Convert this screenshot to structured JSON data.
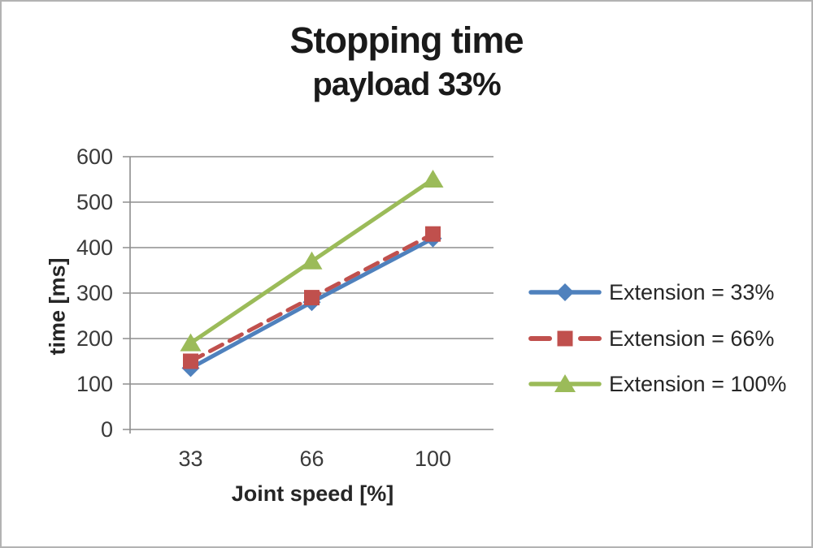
{
  "frame": {
    "background": "#ffffff",
    "border_color": "#b3b3b3"
  },
  "chart_data": {
    "type": "line",
    "title": "Stopping time",
    "subtitle": "payload 33%",
    "xlabel": "Joint speed [%]",
    "ylabel": "time [ms]",
    "categories": [
      "33",
      "66",
      "100"
    ],
    "y_ticks": [
      "0",
      "100",
      "200",
      "300",
      "400",
      "500",
      "600"
    ],
    "ylim": [
      0,
      600
    ],
    "grid": "horizontal",
    "legend_position": "right",
    "axis_color": "#8e8e8e",
    "series": [
      {
        "name": "Extension = 33%",
        "values": [
          135,
          280,
          420
        ],
        "color": "#4f81bd",
        "marker": "diamond",
        "line_style": "solid"
      },
      {
        "name": "Extension = 66%",
        "values": [
          150,
          290,
          430
        ],
        "color": "#c0504d",
        "marker": "square",
        "line_style": "dashed"
      },
      {
        "name": "Extension = 100%",
        "values": [
          190,
          370,
          550
        ],
        "color": "#9bbb59",
        "marker": "triangle",
        "line_style": "solid"
      }
    ]
  }
}
